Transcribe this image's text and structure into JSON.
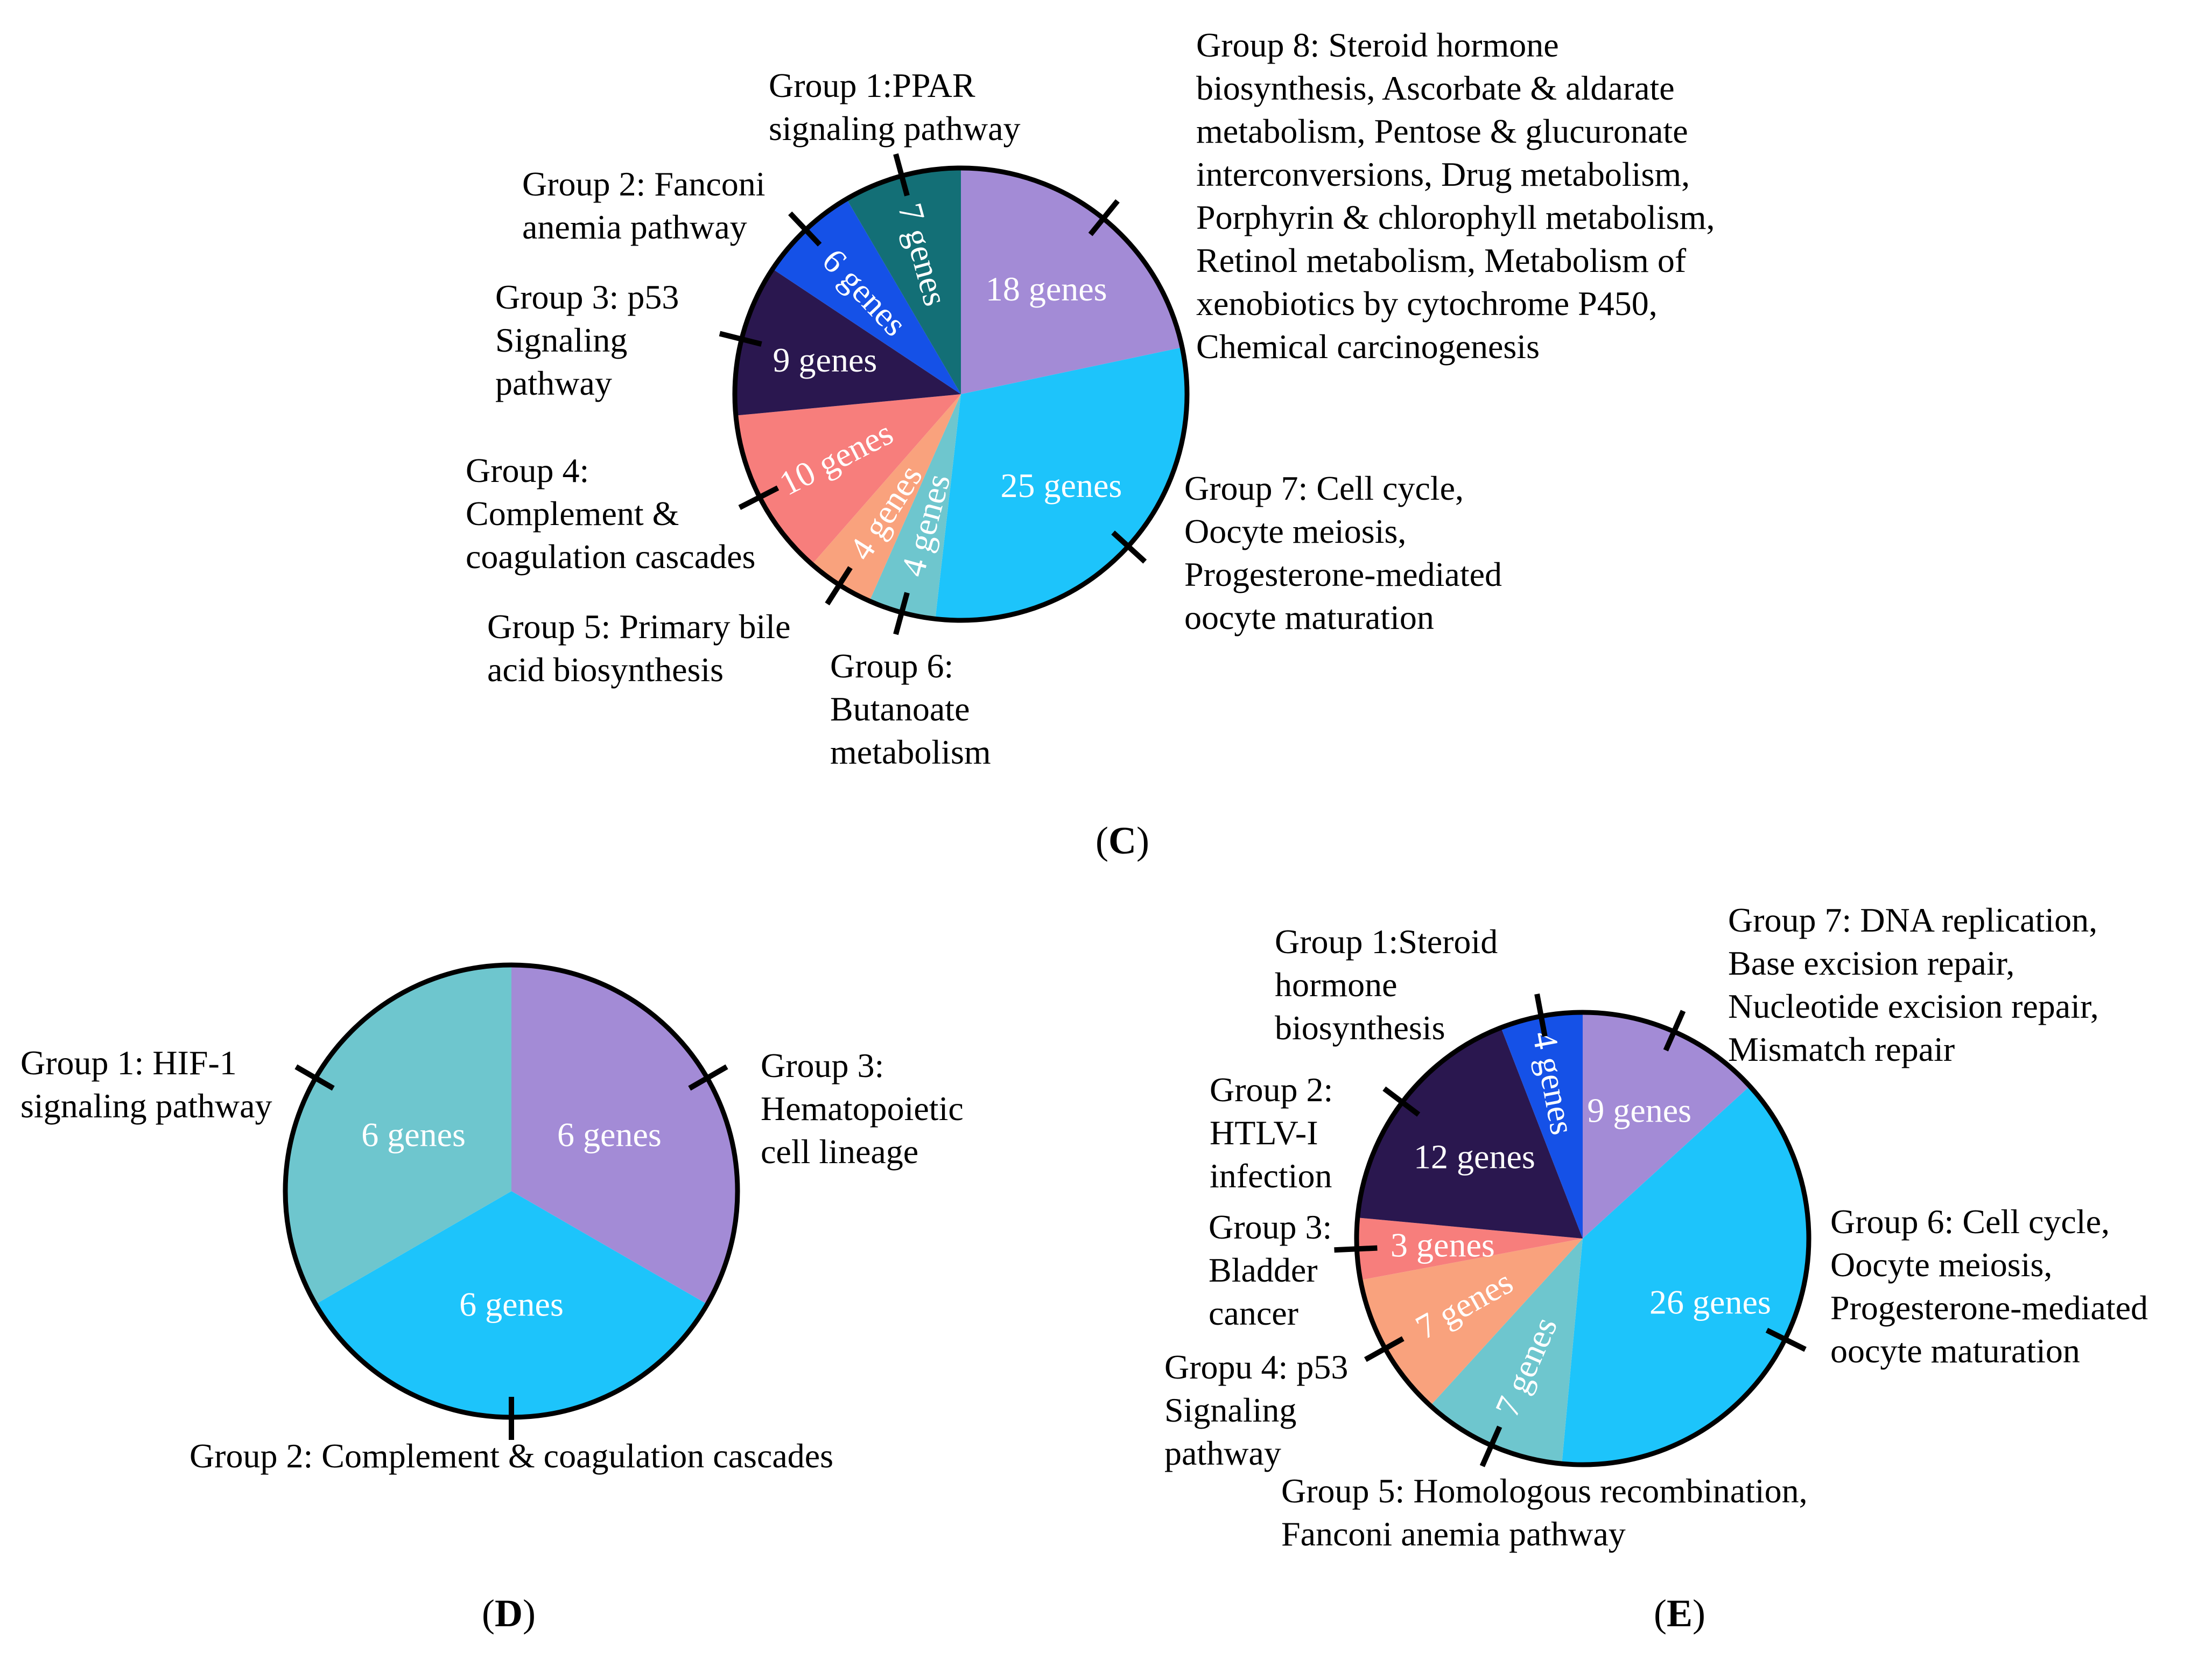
{
  "chart_data": [
    {
      "type": "pie",
      "panel": "C",
      "slices": [
        {
          "id": "g8",
          "value": 18,
          "label": "18 genes",
          "color": "#A38BD6",
          "group": [
            "Group 8: Steroid hormone",
            "biosynthesis, Ascorbate & aldarate",
            "metabolism, Pentose & glucuronate",
            "interconversions, Drug metabolism,",
            "Porphyrin & chlorophyll metabolism,",
            "Retinol metabolism, Metabolism of",
            "xenobiotics by cytochrome P450,",
            "Chemical carcinogenesis"
          ]
        },
        {
          "id": "g7",
          "value": 25,
          "label": "25 genes",
          "color": "#1DC4FB",
          "group": [
            "Group 7: Cell cycle,",
            "Oocyte meiosis,",
            "Progesterone-mediated",
            "oocyte maturation"
          ]
        },
        {
          "id": "g6",
          "value": 4,
          "label": "4 genes",
          "color": "#6EC6CE",
          "group": [
            "Group 6:",
            "Butanoate",
            "metabolism"
          ]
        },
        {
          "id": "g5",
          "value": 4,
          "label": "4 genes",
          "color": "#F9A27D",
          "group": [
            "Group 5: Primary bile",
            "acid biosynthesis"
          ]
        },
        {
          "id": "g4",
          "value": 10,
          "label": "10 genes",
          "color": "#F77E7C",
          "group": [
            "Group 4:",
            "Complement &",
            "coagulation cascades"
          ]
        },
        {
          "id": "g3",
          "value": 9,
          "label": "9 genes",
          "color": "#2A174F",
          "group": [
            "Group 3: p53",
            "Signaling",
            "pathway"
          ]
        },
        {
          "id": "g2",
          "value": 6,
          "label": "6 genes",
          "color": "#1551E7",
          "group": [
            "Group 2: Fanconi",
            "anemia pathway"
          ]
        },
        {
          "id": "g1",
          "value": 7,
          "label": "7 genes",
          "color": "#136F76",
          "group": [
            "Group 1:PPAR",
            "signaling pathway"
          ]
        }
      ]
    },
    {
      "type": "pie",
      "panel": "D",
      "slices": [
        {
          "id": "g3",
          "value": 6,
          "label": "6 genes",
          "color": "#A38BD6",
          "group": [
            "Group 3:",
            "Hematopoietic",
            "cell lineage"
          ]
        },
        {
          "id": "g2",
          "value": 6,
          "label": "6 genes",
          "color": "#1DC4FB",
          "group": [
            "Group 2: Complement & coagulation cascades"
          ]
        },
        {
          "id": "g1",
          "value": 6,
          "label": "6 genes",
          "color": "#6EC6CE",
          "group": [
            "Group 1: HIF-1",
            "signaling pathway"
          ]
        }
      ]
    },
    {
      "type": "pie",
      "panel": "E",
      "slices": [
        {
          "id": "g7",
          "value": 9,
          "label": "9 genes",
          "color": "#A38BD6",
          "group": [
            "Group 7: DNA replication,",
            "Base excision repair,",
            "Nucleotide excision repair,",
            "Mismatch repair"
          ]
        },
        {
          "id": "g6",
          "value": 26,
          "label": "26 genes",
          "color": "#1DC4FB",
          "group": [
            "Group 6: Cell cycle,",
            "Oocyte meiosis,",
            "Progesterone-mediated",
            "oocyte maturation"
          ]
        },
        {
          "id": "g5",
          "value": 7,
          "label": "7 genes",
          "color": "#6EC6CE",
          "group": [
            "Group 5: Homologous recombination,",
            "Fanconi anemia pathway"
          ]
        },
        {
          "id": "g4",
          "value": 7,
          "label": "7 genes",
          "color": "#F9A27D",
          "group": [
            "Gropu 4: p53",
            "Signaling",
            "pathway"
          ]
        },
        {
          "id": "g3",
          "value": 3,
          "label": "3 genes",
          "color": "#F77E7C",
          "group": [
            "Group 3:",
            "Bladder",
            "cancer"
          ]
        },
        {
          "id": "g2",
          "value": 12,
          "label": "12 genes",
          "color": "#2A174F",
          "group": [
            "Group 2:",
            "HTLV-I",
            "infection"
          ]
        },
        {
          "id": "g1",
          "value": 4,
          "label": "4 genes",
          "color": "#1551E7",
          "group": [
            "Group 1:Steroid",
            "hormone",
            "biosynthesis"
          ]
        }
      ]
    }
  ]
}
